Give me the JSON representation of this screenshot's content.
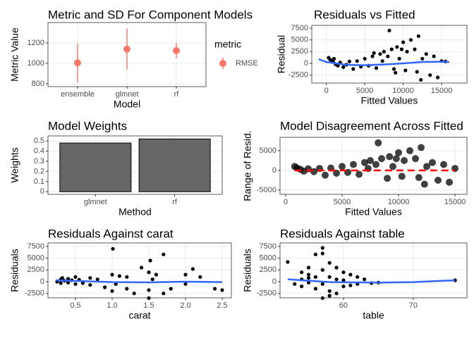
{
  "chart_data": [
    {
      "type": "pointrange",
      "title": "Metric and SD For Component Models",
      "xlabel": "Model",
      "ylabel": "Metric Value",
      "categories": [
        "ensemble",
        "glmnet",
        "rf"
      ],
      "ylim": [
        772,
        1400
      ],
      "yticks": [
        800,
        1000,
        1200
      ],
      "grid": true,
      "legend_title": "metric",
      "series": [
        {
          "name": "RMSE",
          "color": "#f8766d",
          "values": [
            1005,
            1140,
            1125
          ],
          "sd": [
            190,
            200,
            75
          ]
        }
      ]
    },
    {
      "type": "scatter",
      "title": "Residuals vs Fitted",
      "xlabel": "Fitted Values",
      "ylabel": "Residual",
      "xlim": [
        -1900,
        18300
      ],
      "ylim": [
        -4200,
        8100
      ],
      "xticks": [
        0,
        5000,
        10000,
        15000
      ],
      "yticks": [
        -2500,
        0,
        2500,
        5000,
        7500
      ],
      "grid": true,
      "series": [
        {
          "kind": "points",
          "color": "#000000",
          "x": [
            300,
            500,
            700,
            900,
            1200,
            1500,
            1800,
            2200,
            2600,
            3000,
            3500,
            4000,
            4500,
            5000,
            5500,
            6000,
            6500,
            7000,
            7500,
            8000,
            8200,
            8500,
            9000,
            9200,
            9500,
            10000,
            10300,
            10500,
            11000,
            11500,
            12000,
            12300,
            12500,
            13000,
            13500,
            14000,
            14500,
            15000,
            15500,
            8800,
            9800,
            11800,
            7300,
            6200,
            1000
          ],
          "values": [
            1200,
            800,
            600,
            300,
            -200,
            -500,
            200,
            -800,
            -300,
            400,
            -1200,
            500,
            -700,
            1000,
            -500,
            1500,
            -1000,
            2000,
            2500,
            1500,
            7000,
            3000,
            -2000,
            3500,
            1000,
            4500,
            -1500,
            2500,
            5000,
            3000,
            5800,
            -3500,
            1000,
            2000,
            -2500,
            1500,
            -3000,
            500,
            400,
            -1200,
            3000,
            -1800,
            500,
            2200,
            1000
          ]
        },
        {
          "kind": "line",
          "color": "#3366ff",
          "x": [
            -1000,
            0,
            2500,
            5000,
            7500,
            10000,
            12500,
            15000,
            16000
          ],
          "values": [
            900,
            300,
            -300,
            -400,
            -250,
            0,
            300,
            350,
            300
          ]
        }
      ]
    },
    {
      "type": "bar",
      "title": "Model Weights",
      "xlabel": "Method",
      "ylabel": "Weights",
      "categories": [
        "glmnet",
        "rf"
      ],
      "values": [
        0.48,
        0.52
      ],
      "color": "#666666",
      "ylim": [
        -0.026,
        0.55
      ],
      "yticks": [
        0,
        0.1,
        0.2,
        0.3,
        0.4,
        0.5
      ],
      "grid": true
    },
    {
      "type": "scatter",
      "title": "Model Disagreement Across Fitted",
      "xlabel": "Fitted Values",
      "ylabel": "Range of Resid.",
      "xlim": [
        -500,
        16060
      ],
      "ylim": [
        -6070,
        8400
      ],
      "xticks": [
        0,
        5000,
        10000,
        15000
      ],
      "yticks": [
        -5000,
        0,
        5000
      ],
      "grid": true,
      "series": [
        {
          "kind": "points",
          "color": "#000000",
          "opacity": 0.75,
          "point_size": 5,
          "x": [
            800,
            1000,
            1300,
            1600,
            2000,
            2500,
            3000,
            3500,
            4000,
            4500,
            5000,
            5500,
            6000,
            6500,
            7000,
            7500,
            8000,
            8200,
            8500,
            9000,
            9200,
            9500,
            10000,
            10300,
            10500,
            11000,
            11500,
            12000,
            12300,
            12500,
            13000,
            13500,
            14000,
            14500,
            15000,
            9800,
            11800,
            7300
          ],
          "values": [
            1000,
            600,
            300,
            -200,
            400,
            -300,
            500,
            -1200,
            600,
            -700,
            1000,
            -500,
            1500,
            -1000,
            2000,
            2500,
            1500,
            7000,
            3000,
            -2000,
            3500,
            1000,
            4500,
            -1500,
            2500,
            5000,
            3000,
            5800,
            -3500,
            1000,
            2000,
            -2500,
            1500,
            -3000,
            500,
            3000,
            -1800,
            500
          ]
        },
        {
          "kind": "line",
          "color": "#ff0000",
          "dashed": true,
          "x": [
            800,
            15000
          ],
          "values": [
            0,
            0
          ]
        }
      ]
    },
    {
      "type": "scatter",
      "title": "Residuals Against carat",
      "xlabel": "carat",
      "ylabel": "Residuals",
      "xlim": [
        0.125,
        2.625
      ],
      "ylim": [
        -3450,
        8250
      ],
      "xticks": [
        0.5,
        {
          "value": 1,
          "label": "1.0"
        },
        1.5,
        {
          "value": 2,
          "label": "2.0"
        },
        2.5
      ],
      "yticks": [
        -2500,
        0,
        2500,
        5000,
        7500
      ],
      "grid": true,
      "series": [
        {
          "kind": "points",
          "color": "#000000",
          "x": [
            0.25,
            0.3,
            0.3,
            0.32,
            0.35,
            0.4,
            0.4,
            0.45,
            0.5,
            0.5,
            0.55,
            0.6,
            0.7,
            0.7,
            0.8,
            0.9,
            1.0,
            1.0,
            1.01,
            1.05,
            1.1,
            1.2,
            1.2,
            1.3,
            1.4,
            1.5,
            1.5,
            1.5,
            1.52,
            1.6,
            1.7,
            1.7,
            1.8,
            2.0,
            2.0,
            2.1,
            2.2,
            2.4,
            2.5,
            1.55
          ],
          "values": [
            0,
            500,
            -300,
            800,
            200,
            -200,
            600,
            300,
            -500,
            1000,
            400,
            -300,
            800,
            -700,
            500,
            -1200,
            1500,
            -2000,
            7000,
            -500,
            1200,
            -1500,
            1000,
            -2500,
            3000,
            -3500,
            2000,
            -1800,
            4500,
            1500,
            5800,
            -2500,
            -1500,
            1500,
            -500,
            2700,
            1000,
            -1500,
            -1800,
            500
          ]
        },
        {
          "kind": "line",
          "color": "#3366ff",
          "x": [
            0.23,
            1,
            1.5,
            2,
            2.5
          ],
          "values": [
            300,
            -100,
            -150,
            0,
            -100
          ]
        }
      ]
    },
    {
      "type": "scatter",
      "title": "Residuals Against table",
      "xlabel": "table",
      "ylabel": "Residuals",
      "xlim": [
        50.9,
        77.7
      ],
      "ylim": [
        -3450,
        8250
      ],
      "xticks": [
        60,
        70
      ],
      "yticks": [
        -2500,
        0,
        2500,
        5000,
        7500
      ],
      "grid": true,
      "series": [
        {
          "kind": "points",
          "color": "#000000",
          "x": [
            52,
            53,
            54,
            54,
            55,
            55,
            55,
            56,
            56,
            56,
            57,
            57,
            57,
            57,
            58,
            58,
            58,
            59,
            59,
            59,
            60,
            60,
            60,
            61,
            61,
            62,
            62,
            63,
            64,
            65,
            76,
            57,
            58,
            55,
            54
          ],
          "values": [
            4200,
            -500,
            2000,
            -1000,
            3000,
            -200,
            800,
            5800,
            -1500,
            1000,
            7200,
            -3500,
            2500,
            -500,
            4000,
            -2000,
            1000,
            3000,
            -2500,
            500,
            2000,
            -1000,
            300,
            1500,
            -800,
            1000,
            -500,
            500,
            -300,
            -200,
            300,
            6000,
            -3000,
            1500,
            500
          ]
        },
        {
          "kind": "line",
          "color": "#3366ff",
          "x": [
            52,
            58,
            65,
            70,
            76
          ],
          "values": [
            500,
            -100,
            -200,
            -100,
            300
          ]
        }
      ]
    }
  ]
}
